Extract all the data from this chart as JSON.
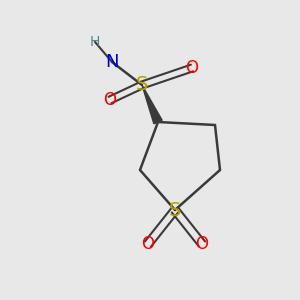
{
  "colors": {
    "S": "#b8a000",
    "O": "#ff0000",
    "N": "#0000cc",
    "H": "#4a8a8a",
    "bond": "#3a3a3a",
    "bg": "#e8e8e8"
  },
  "bg": "#e8e8e8"
}
